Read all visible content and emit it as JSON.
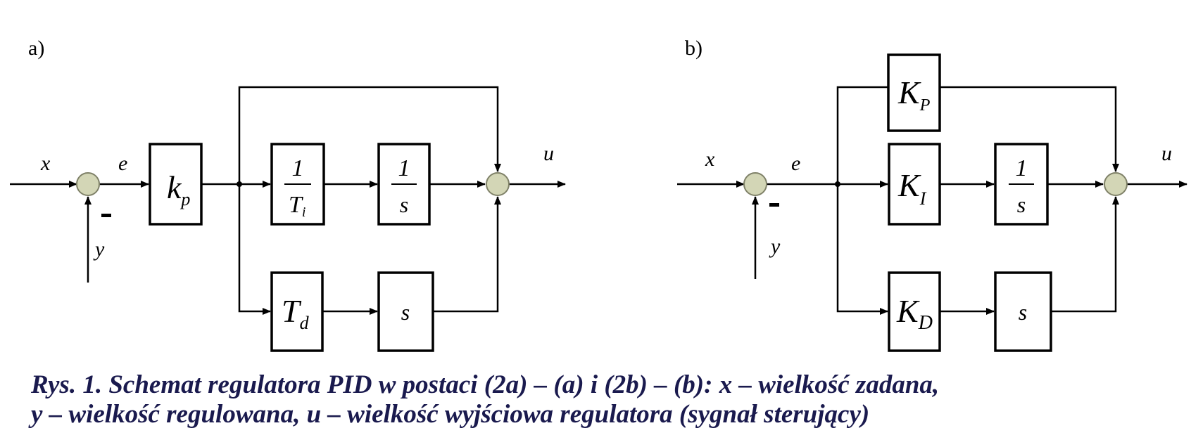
{
  "colors": {
    "ink": "#000000",
    "summing_node": "#d3d6b6",
    "caption": "#1a1a4e"
  },
  "panel_a": {
    "label": "a)",
    "signals": {
      "x": "x",
      "e": "e",
      "y": "y",
      "u": "u",
      "minus": "-"
    },
    "blocks": {
      "gain": {
        "main": "k",
        "sub": "p"
      },
      "integral_time": {
        "num": "1",
        "den_main": "T",
        "den_sub": "i"
      },
      "integrator": {
        "num": "1",
        "den": "s"
      },
      "derivative_time": {
        "main": "T",
        "sub": "d"
      },
      "differentiator": {
        "text": "s"
      }
    }
  },
  "panel_b": {
    "label": "b)",
    "signals": {
      "x": "x",
      "e": "e",
      "y": "y",
      "u": "u",
      "minus": "-"
    },
    "blocks": {
      "kp": {
        "main": "K",
        "sub": "P"
      },
      "ki": {
        "main": "K",
        "sub": "I"
      },
      "integrator": {
        "num": "1",
        "den": "s"
      },
      "kd": {
        "main": "K",
        "sub": "D"
      },
      "differentiator": {
        "text": "s"
      }
    }
  },
  "caption": {
    "line1": "Rys. 1. Schemat regulatora PID w postaci (2a) – (a) i (2b) – (b): x – wielkość zadana,",
    "line2": "y – wielkość regulowana, u – wielkość wyjściowa regulatora (sygnał sterujący)"
  }
}
